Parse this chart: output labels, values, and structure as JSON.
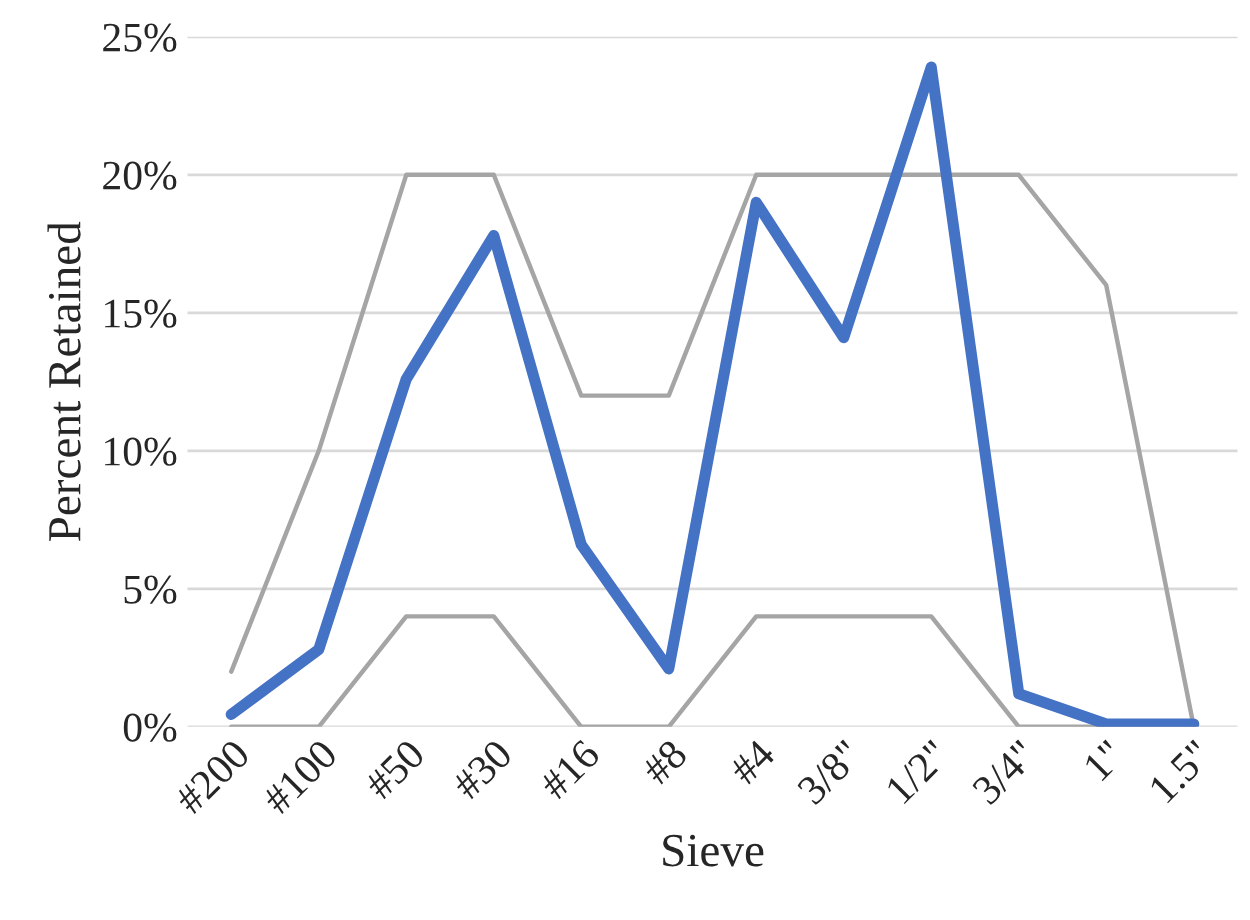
{
  "chart_data": {
    "type": "line",
    "xlabel": "Sieve",
    "ylabel": "Percent Retained",
    "categories": [
      "#200",
      "#100",
      "#50",
      "#30",
      "#16",
      "#8",
      "#4",
      "3/8\"",
      "1/2\"",
      "3/4\"",
      "1\"",
      "1.5\""
    ],
    "series": [
      {
        "color": "#a5a5a5",
        "values": [
          2,
          10,
          20,
          20,
          12,
          12,
          20,
          20,
          20,
          20,
          16,
          0
        ]
      },
      {
        "color": "#a5a5a5",
        "values": [
          0,
          0,
          4,
          4,
          0,
          0,
          4,
          4,
          4,
          0,
          0,
          0
        ]
      },
      {
        "color": "#4472c4",
        "values": [
          0.45,
          2.8,
          12.6,
          17.8,
          6.6,
          2.1,
          19.0,
          14.1,
          23.9,
          1.2,
          0.1,
          0.1
        ]
      }
    ],
    "ylim": [
      0,
      25
    ],
    "yticks": [
      {
        "value": 0,
        "label": "0%"
      },
      {
        "value": 5,
        "label": "5%"
      },
      {
        "value": 10,
        "label": "10%"
      },
      {
        "value": 15,
        "label": "15%"
      },
      {
        "value": 20,
        "label": "20%"
      },
      {
        "value": 25,
        "label": "25%"
      }
    ],
    "grid": "y",
    "legend": false,
    "marker": "none",
    "line_style": "solid"
  }
}
